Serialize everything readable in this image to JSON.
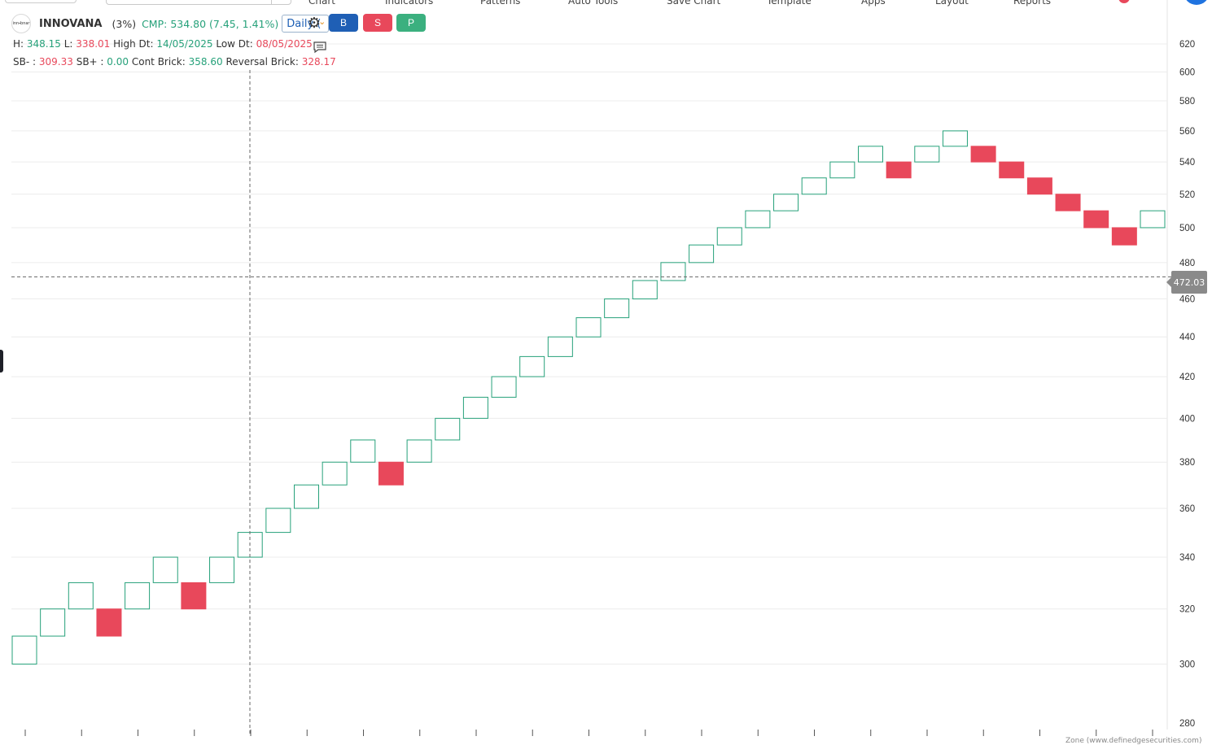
{
  "top": {
    "menu": [
      "Chart",
      "Indicators",
      "Patterns",
      "Auto Tools",
      "Save Chart",
      "Template",
      "Apps",
      "Layout",
      "Reports"
    ]
  },
  "header": {
    "logo_text": "inn⬩bnar",
    "symbol": "INNOVANA",
    "change_pct": "(3%)",
    "cmp": "CMP: 534.80 (7.45, 1.41%)",
    "timeframe": "Daily (",
    "buttons": {
      "buy": "B",
      "sell": "S",
      "p": "P"
    }
  },
  "stats": {
    "h_label": "H:",
    "h_value": "348.15",
    "l_label": "L:",
    "l_value": "338.01",
    "high_dt_label": "High Dt:",
    "high_dt_value": "14/05/2025",
    "low_dt_label": "Low Dt:",
    "low_dt_value": "08/05/2025",
    "sb_minus_label": "SB- :",
    "sb_minus_value": "309.33",
    "sb_plus_label": "SB+ :",
    "sb_plus_value": "0.00",
    "cont_brick_label": "Cont Brick:",
    "cont_brick_value": "358.60",
    "reversal_brick_label": "Reversal Brick:",
    "reversal_brick_value": "328.17"
  },
  "crosshair_price": "472.03",
  "watermark": "Zone (www.definedgesecurities.com)",
  "colors": {
    "up": "#26a17a",
    "down": "#e8485b",
    "accent": "#1f5fb5",
    "p": "#3bb07f"
  },
  "chart_data": {
    "type": "renko",
    "y_ticks": [
      280,
      300,
      320,
      340,
      360,
      380,
      400,
      420,
      440,
      460,
      480,
      500,
      520,
      540,
      560,
      580,
      600,
      620
    ],
    "ylim": [
      280,
      620
    ],
    "bricks": [
      {
        "dir": "up",
        "low": 300,
        "high": 310
      },
      {
        "dir": "up",
        "low": 310,
        "high": 320
      },
      {
        "dir": "up",
        "low": 320,
        "high": 330
      },
      {
        "dir": "down",
        "low": 310,
        "high": 320
      },
      {
        "dir": "up",
        "low": 320,
        "high": 330
      },
      {
        "dir": "up",
        "low": 330,
        "high": 340
      },
      {
        "dir": "down",
        "low": 320,
        "high": 330
      },
      {
        "dir": "up",
        "low": 330,
        "high": 340
      },
      {
        "dir": "up",
        "low": 340,
        "high": 350
      },
      {
        "dir": "up",
        "low": 350,
        "high": 360
      },
      {
        "dir": "up",
        "low": 360,
        "high": 370
      },
      {
        "dir": "up",
        "low": 370,
        "high": 380
      },
      {
        "dir": "up",
        "low": 380,
        "high": 390
      },
      {
        "dir": "down",
        "low": 370,
        "high": 380
      },
      {
        "dir": "up",
        "low": 380,
        "high": 390
      },
      {
        "dir": "up",
        "low": 390,
        "high": 400
      },
      {
        "dir": "up",
        "low": 400,
        "high": 410
      },
      {
        "dir": "up",
        "low": 410,
        "high": 420
      },
      {
        "dir": "up",
        "low": 420,
        "high": 430
      },
      {
        "dir": "up",
        "low": 430,
        "high": 440
      },
      {
        "dir": "up",
        "low": 440,
        "high": 450
      },
      {
        "dir": "up",
        "low": 450,
        "high": 460
      },
      {
        "dir": "up",
        "low": 460,
        "high": 470
      },
      {
        "dir": "up",
        "low": 470,
        "high": 480
      },
      {
        "dir": "up",
        "low": 480,
        "high": 490
      },
      {
        "dir": "up",
        "low": 490,
        "high": 500
      },
      {
        "dir": "up",
        "low": 500,
        "high": 510
      },
      {
        "dir": "up",
        "low": 510,
        "high": 520
      },
      {
        "dir": "up",
        "low": 520,
        "high": 530
      },
      {
        "dir": "up",
        "low": 530,
        "high": 540
      },
      {
        "dir": "up",
        "low": 540,
        "high": 550
      },
      {
        "dir": "down",
        "low": 530,
        "high": 540
      },
      {
        "dir": "up",
        "low": 540,
        "high": 550
      },
      {
        "dir": "up",
        "low": 550,
        "high": 560
      },
      {
        "dir": "down",
        "low": 540,
        "high": 550
      },
      {
        "dir": "down",
        "low": 530,
        "high": 540
      },
      {
        "dir": "down",
        "low": 520,
        "high": 530
      },
      {
        "dir": "down",
        "low": 510,
        "high": 520
      },
      {
        "dir": "down",
        "low": 500,
        "high": 510
      },
      {
        "dir": "down",
        "low": 490,
        "high": 500
      },
      {
        "dir": "up",
        "low": 500,
        "high": 510
      }
    ]
  }
}
